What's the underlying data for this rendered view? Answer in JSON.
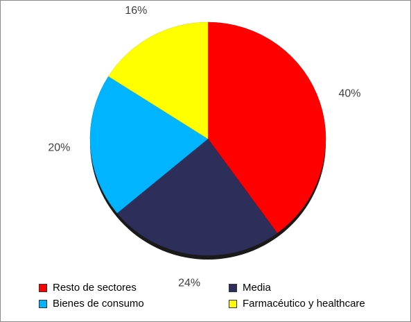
{
  "chart_data": {
    "type": "pie",
    "title": "",
    "slices": [
      {
        "label": "Resto de sectores",
        "value": 40,
        "label_text": "40%",
        "color": "#ff0000"
      },
      {
        "label": "Media",
        "value": 24,
        "label_text": "24%",
        "color": "#2e2e5a"
      },
      {
        "label": "Bienes de consumo",
        "value": 20,
        "label_text": "20%",
        "color": "#00b4ff"
      },
      {
        "label": "Farmacéutico y healthcare",
        "value": 16,
        "label_text": "16%",
        "color": "#ffff00"
      }
    ],
    "start_angle_deg": 0,
    "direction": "clockwise",
    "legend_position": "bottom",
    "style": "3d-tilted"
  },
  "legend": [
    {
      "label": "Resto de sectores",
      "color": "#ff0000"
    },
    {
      "label": "Media",
      "color": "#2e2e5a"
    },
    {
      "label": "Bienes de consumo",
      "color": "#00b4ff"
    },
    {
      "label": "Farmacéutico y healthcare",
      "color": "#ffff00"
    }
  ]
}
